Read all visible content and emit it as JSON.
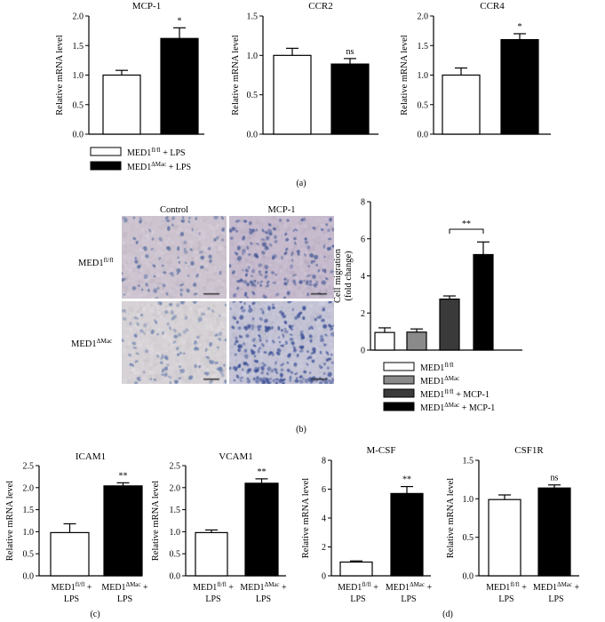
{
  "y_label": "Relative mRNA level",
  "panel_labels": {
    "a": "(a)",
    "b": "(b)",
    "c": "(c)",
    "d": "(d)"
  },
  "legend_a": [
    {
      "base": "MED1",
      "sup": "fl/fl",
      "suffix": " + LPS",
      "fill": "#ffffff"
    },
    {
      "base": "MED1",
      "sup": "ΔMac",
      "suffix": " + LPS",
      "fill": "#000000"
    }
  ],
  "legend_b": [
    {
      "base": "MED1",
      "sup": "fl/fl",
      "suffix": "",
      "fill": "#ffffff"
    },
    {
      "base": "MED1",
      "sup": "ΔMac",
      "suffix": "",
      "fill": "#8a8a8a"
    },
    {
      "base": "MED1",
      "sup": "fl/fl",
      "suffix": " + MCP-1",
      "fill": "#3a3a3a"
    },
    {
      "base": "MED1",
      "sup": "ΔMac",
      "suffix": " + MCP-1",
      "fill": "#000000"
    }
  ],
  "micrograph": {
    "col_labels": [
      "Control",
      "MCP-1"
    ],
    "row_labels": [
      {
        "base": "MED1",
        "sup": "fl/fl"
      },
      {
        "base": "MED1",
        "sup": "ΔMac"
      }
    ]
  },
  "xcat": {
    "fl": {
      "base": "MED1",
      "sup": "fl/fl",
      "suffix": " +",
      "line2": "LPS"
    },
    "dm": {
      "base": "MED1",
      "sup": "ΔMac",
      "suffix": " +",
      "line2": "LPS"
    }
  },
  "chart_data": [
    {
      "id": "mcp1",
      "type": "bar",
      "title": "MCP-1",
      "ylabel": "Relative mRNA level",
      "ylim": [
        0,
        2.0
      ],
      "yticks": [
        0.0,
        0.5,
        1.0,
        1.5,
        2.0
      ],
      "tick_decimals": 1,
      "values": [
        1.0,
        1.62
      ],
      "errors": [
        0.08,
        0.18
      ],
      "fills": [
        "#ffffff",
        "#000000"
      ],
      "annotation": {
        "text": "*",
        "bar": 1
      }
    },
    {
      "id": "ccr2",
      "type": "bar",
      "title": "CCR2",
      "ylabel": "Relative mRNA level",
      "ylim": [
        0,
        1.5
      ],
      "yticks": [
        0.0,
        0.5,
        1.0,
        1.5
      ],
      "tick_decimals": 1,
      "values": [
        1.0,
        0.89
      ],
      "errors": [
        0.09,
        0.07
      ],
      "fills": [
        "#ffffff",
        "#000000"
      ],
      "annotation": {
        "text": "ns",
        "bar": 1
      }
    },
    {
      "id": "ccr4",
      "type": "bar",
      "title": "CCR4",
      "ylabel": "Relative mRNA level",
      "ylim": [
        0,
        2.0
      ],
      "yticks": [
        0.0,
        0.5,
        1.0,
        1.5,
        2.0
      ],
      "tick_decimals": 1,
      "values": [
        1.0,
        1.6
      ],
      "errors": [
        0.12,
        0.1
      ],
      "fills": [
        "#ffffff",
        "#000000"
      ],
      "annotation": {
        "text": "*",
        "bar": 1
      }
    },
    {
      "id": "migration",
      "type": "bar",
      "title": "",
      "ylabel": "Cell migration\n(fold change)",
      "ylim": [
        0,
        8
      ],
      "yticks": [
        0,
        2,
        4,
        6,
        8
      ],
      "tick_decimals": 0,
      "values": [
        0.95,
        0.97,
        2.75,
        5.15
      ],
      "errors": [
        0.25,
        0.17,
        0.17,
        0.68
      ],
      "fills": [
        "#ffffff",
        "#8a8a8a",
        "#3a3a3a",
        "#000000"
      ],
      "bracket": {
        "from": 2,
        "to": 3,
        "text": "**"
      }
    },
    {
      "id": "icam1",
      "type": "bar",
      "title": "ICAM1",
      "ylabel": "Relative mRNA level",
      "ylim": [
        0,
        2.5
      ],
      "yticks": [
        0.0,
        0.5,
        1.0,
        1.5,
        2.0,
        2.5
      ],
      "tick_decimals": 1,
      "values": [
        0.98,
        2.04
      ],
      "errors": [
        0.2,
        0.07
      ],
      "fills": [
        "#ffffff",
        "#000000"
      ],
      "annotation": {
        "text": "**",
        "bar": 1
      }
    },
    {
      "id": "vcam1",
      "type": "bar",
      "title": "VCAM1",
      "ylabel": "Relative mRNA level",
      "ylim": [
        0,
        2.5
      ],
      "yticks": [
        0.0,
        0.5,
        1.0,
        1.5,
        2.0,
        2.5
      ],
      "tick_decimals": 1,
      "values": [
        0.98,
        2.1
      ],
      "errors": [
        0.06,
        0.1
      ],
      "fills": [
        "#ffffff",
        "#000000"
      ],
      "annotation": {
        "text": "**",
        "bar": 1
      }
    },
    {
      "id": "mcsf",
      "type": "bar",
      "title": "M-CSF",
      "ylabel": "Relative mRNA level",
      "ylim": [
        0,
        8
      ],
      "yticks": [
        0,
        2,
        4,
        6,
        8
      ],
      "tick_decimals": 0,
      "values": [
        0.95,
        5.7
      ],
      "errors": [
        0.08,
        0.48
      ],
      "fills": [
        "#ffffff",
        "#000000"
      ],
      "annotation": {
        "text": "**",
        "bar": 1
      }
    },
    {
      "id": "csf1r",
      "type": "bar",
      "title": "CSF1R",
      "ylabel": "Relative mRNA level",
      "ylim": [
        0,
        1.5
      ],
      "yticks": [
        0.0,
        0.5,
        1.0,
        1.5
      ],
      "tick_decimals": 1,
      "values": [
        0.99,
        1.14
      ],
      "errors": [
        0.06,
        0.04
      ],
      "fills": [
        "#ffffff",
        "#000000"
      ],
      "annotation": {
        "text": "ns",
        "bar": 1
      }
    }
  ]
}
